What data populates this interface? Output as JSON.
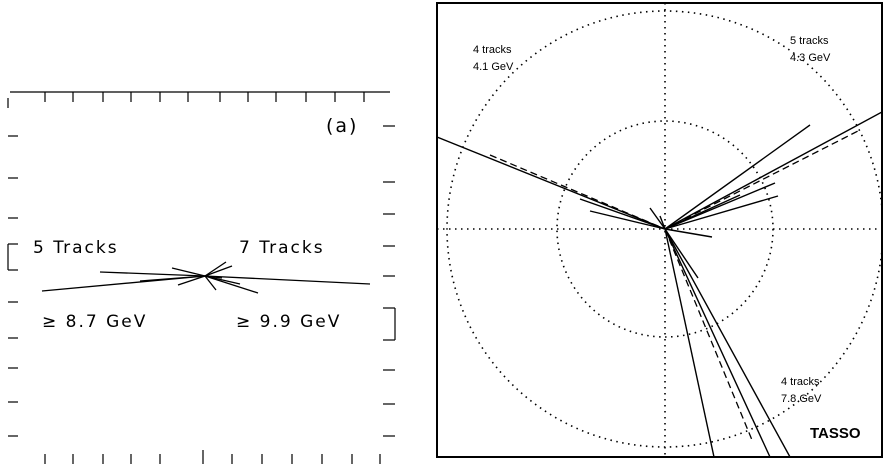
{
  "panel_a": {
    "tag": "(a)",
    "jet_left_tracks": "5 Tracks",
    "jet_left_energy": "≥ 8.7 GeV",
    "jet_right_tracks": "7 Tracks",
    "jet_right_energy": "≥ 9.9 GeV"
  },
  "panel_b": {
    "brand": "TASSO",
    "jet_upper_left_tracks": "4 tracks",
    "jet_upper_left_energy": "4.1 GeV",
    "jet_upper_right_tracks": "5 tracks",
    "jet_upper_right_energy": "4.3 GeV",
    "jet_lower_tracks": "4 tracks",
    "jet_lower_energy": "7.8 GeV"
  },
  "colors": {
    "ink": "#000000",
    "paper": "#ffffff"
  }
}
